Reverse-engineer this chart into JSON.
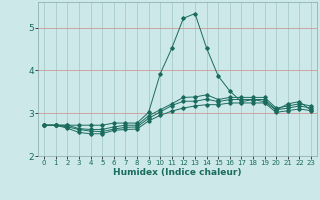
{
  "xlabel": "Humidex (Indice chaleur)",
  "background_color": "#cce8e8",
  "grid_color": "#aacccc",
  "line_color": "#1a6b5e",
  "x_values": [
    0,
    1,
    2,
    3,
    4,
    5,
    6,
    7,
    8,
    9,
    10,
    11,
    12,
    13,
    14,
    15,
    16,
    17,
    18,
    19,
    20,
    21,
    22,
    23
  ],
  "series1": [
    2.72,
    2.72,
    2.65,
    2.55,
    2.52,
    2.52,
    2.6,
    2.62,
    2.63,
    2.82,
    2.95,
    3.05,
    3.12,
    3.17,
    3.2,
    3.2,
    3.24,
    3.24,
    3.24,
    3.24,
    3.02,
    3.06,
    3.1,
    3.06
  ],
  "series2": [
    2.72,
    2.72,
    2.68,
    2.62,
    2.58,
    2.57,
    2.63,
    2.67,
    2.68,
    2.88,
    3.03,
    3.18,
    3.28,
    3.28,
    3.33,
    3.27,
    3.32,
    3.32,
    3.32,
    3.32,
    3.08,
    3.12,
    3.17,
    3.12
  ],
  "series3": [
    2.72,
    2.72,
    2.72,
    2.64,
    2.62,
    2.62,
    2.68,
    2.72,
    2.72,
    2.94,
    3.08,
    3.22,
    3.37,
    3.38,
    3.43,
    3.32,
    3.37,
    3.37,
    3.37,
    3.37,
    3.12,
    3.17,
    3.22,
    3.17
  ],
  "series4": [
    2.72,
    2.72,
    2.72,
    2.72,
    2.72,
    2.72,
    2.77,
    2.77,
    2.77,
    3.02,
    3.92,
    4.52,
    5.22,
    5.33,
    4.52,
    3.87,
    3.52,
    3.27,
    3.32,
    3.27,
    3.07,
    3.22,
    3.27,
    3.07
  ],
  "ylim": [
    2.0,
    5.6
  ],
  "xlim": [
    -0.5,
    23.5
  ],
  "yticks": [
    2,
    3,
    4,
    5
  ],
  "xticks": [
    0,
    1,
    2,
    3,
    4,
    5,
    6,
    7,
    8,
    9,
    10,
    11,
    12,
    13,
    14,
    15,
    16,
    17,
    18,
    19,
    20,
    21,
    22,
    23
  ]
}
